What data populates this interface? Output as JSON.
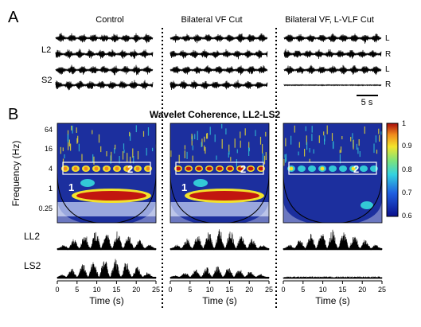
{
  "panel_a": {
    "letter": "A",
    "columns": [
      {
        "title": "Control",
        "silent": []
      },
      {
        "title": "Bilateral VF Cut",
        "silent": []
      },
      {
        "title": "Bilateral VF, L-VLF Cut",
        "silent": [
          3
        ]
      }
    ],
    "trace_labels": [
      "L2",
      "S2"
    ],
    "side_labels": [
      "L",
      "R",
      "L",
      "R"
    ],
    "scale_bar": "5 s"
  },
  "panel_b": {
    "letter": "B",
    "title": "Wavelet Coherence, LL2-LS2",
    "y_axis_title": "Frequency (Hz)",
    "y_ticks": [
      "64",
      "16",
      "4",
      "1",
      "0.25"
    ],
    "x_axis_title": "Time (s)",
    "x_ticks": [
      "0",
      "5",
      "10",
      "15",
      "20",
      "25"
    ],
    "row_labels": [
      "LL2",
      "LS2"
    ],
    "region_labels": [
      "1",
      "2"
    ],
    "colorbar_ticks": [
      "1",
      "0.9",
      "0.8",
      "0.7",
      "0.6"
    ],
    "colors": {
      "low": "#1c2f9e",
      "mid": "#33c9d6",
      "yellow": "#f2e22b",
      "high": "#c2160f",
      "box": "#ffffff"
    },
    "columns": [
      {
        "band1": true,
        "band2": "medium",
        "ll2_env": "full",
        "ls2_env": "full"
      },
      {
        "band1": true,
        "band2": "strong",
        "ll2_env": "full",
        "ls2_env": "reduced"
      },
      {
        "band1": false,
        "band2": "weak",
        "ll2_env": "full",
        "ls2_env": "flat"
      }
    ]
  }
}
